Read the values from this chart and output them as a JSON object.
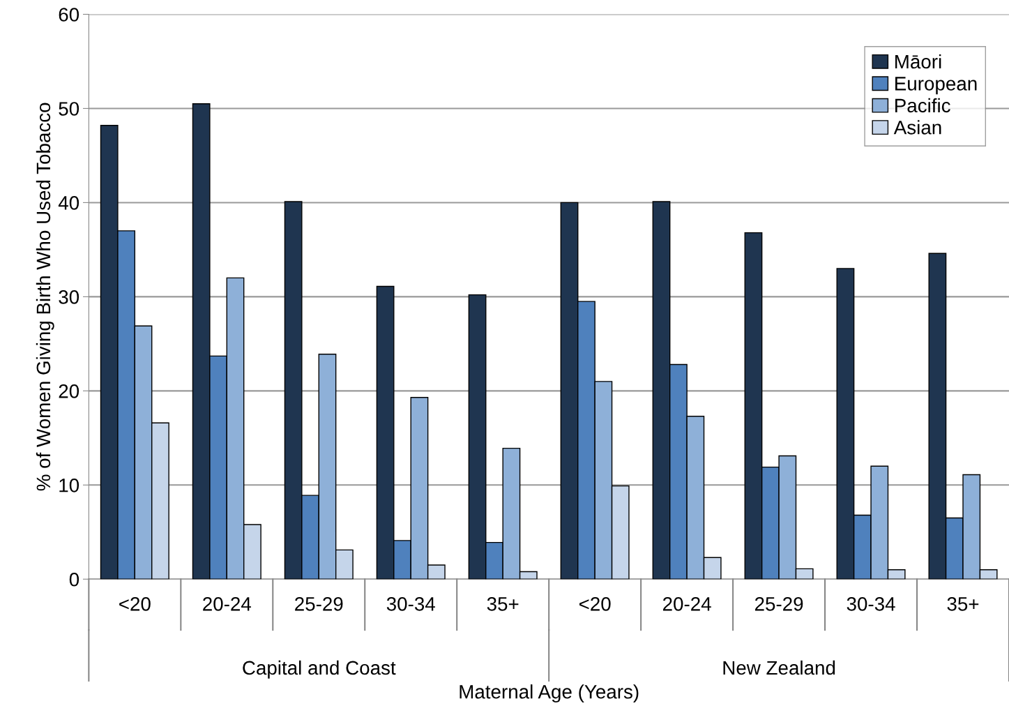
{
  "chart_data": {
    "type": "bar",
    "ylabel": "% of Women Giving Birth Who Used Tobacco",
    "xlabel": "Maternal Age (Years)",
    "categories": [
      "<20",
      "20-24",
      "25-29",
      "30-34",
      "35+",
      "<20",
      "20-24",
      "25-29",
      "30-34",
      "35+"
    ],
    "annotations": [
      "Capital and Coast",
      "New Zealand"
    ],
    "series": [
      {
        "name": "Māori",
        "color": "#1f3550",
        "values": [
          48.2,
          50.5,
          40.1,
          31.1,
          30.2,
          40.0,
          40.1,
          36.8,
          33.0,
          34.6
        ]
      },
      {
        "name": "European",
        "color": "#4f81bd",
        "values": [
          37.0,
          23.7,
          8.9,
          4.1,
          3.9,
          29.5,
          22.8,
          11.9,
          6.8,
          6.5
        ]
      },
      {
        "name": "Pacific",
        "color": "#8eb0d8",
        "values": [
          26.9,
          32.0,
          23.9,
          19.3,
          13.9,
          21.0,
          17.3,
          13.1,
          12.0,
          11.1
        ]
      },
      {
        "name": "Asian",
        "color": "#c5d5ea",
        "values": [
          16.6,
          5.8,
          3.1,
          1.5,
          0.8,
          9.9,
          2.3,
          1.1,
          1.0,
          1.0
        ]
      }
    ],
    "ylim": [
      0,
      60
    ],
    "yticks": [
      0,
      10,
      20,
      30,
      40,
      50,
      60
    ],
    "grid": "y",
    "legend": "top right"
  }
}
